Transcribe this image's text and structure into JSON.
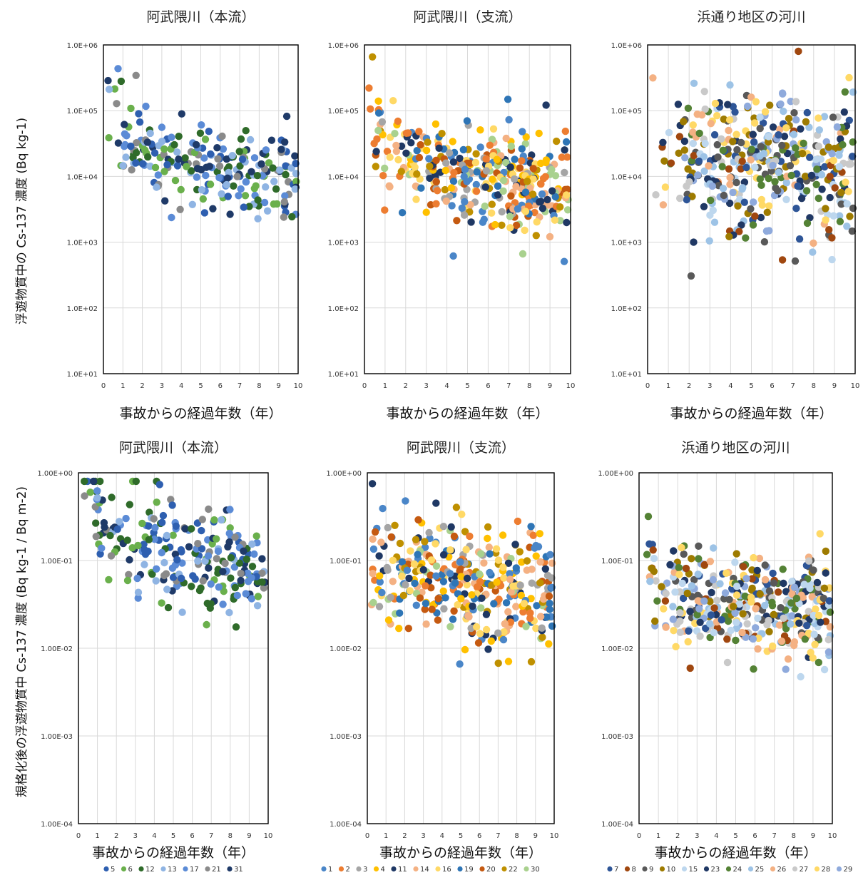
{
  "figure": {
    "ylabel_top": "浮遊物質中の Cs-137 濃度 (Bq kg-1)",
    "ylabel_bottom": "規格化後の浮遊物質中 Cs-137 濃度 (Bq kg-1 / Bq m-2)"
  },
  "legends": {
    "main": [
      {
        "label": "5",
        "color": "#2E5FB0"
      },
      {
        "label": "6",
        "color": "#6AB04C"
      },
      {
        "label": "12",
        "color": "#2F6B2A"
      },
      {
        "label": "13",
        "color": "#8FB4E3"
      },
      {
        "label": "17",
        "color": "#5B8BD6"
      },
      {
        "label": "21",
        "color": "#8A8A8A"
      },
      {
        "label": "31",
        "color": "#1F3A68"
      }
    ],
    "trib": [
      {
        "label": "1",
        "color": "#4A86C8"
      },
      {
        "label": "2",
        "color": "#ED7D31"
      },
      {
        "label": "3",
        "color": "#A5A5A5"
      },
      {
        "label": "4",
        "color": "#FFC000"
      },
      {
        "label": "11",
        "color": "#1F3864"
      },
      {
        "label": "14",
        "color": "#F4B183"
      },
      {
        "label": "16",
        "color": "#FFD966"
      },
      {
        "label": "19",
        "color": "#2E75B6"
      },
      {
        "label": "20",
        "color": "#C55A11"
      },
      {
        "label": "22",
        "color": "#BF9000"
      },
      {
        "label": "30",
        "color": "#A9D18E"
      }
    ],
    "hama": [
      {
        "label": "7",
        "color": "#2E5597"
      },
      {
        "label": "8",
        "color": "#A0470F"
      },
      {
        "label": "9",
        "color": "#595959"
      },
      {
        "label": "10",
        "color": "#9E7B00"
      },
      {
        "label": "15",
        "color": "#BDD7EE"
      },
      {
        "label": "23",
        "color": "#203864"
      },
      {
        "label": "24",
        "color": "#548235"
      },
      {
        "label": "25",
        "color": "#9DC3E6"
      },
      {
        "label": "26",
        "color": "#F4B183"
      },
      {
        "label": "27",
        "color": "#C9C9C9"
      },
      {
        "label": "28",
        "color": "#FFD966"
      },
      {
        "label": "29",
        "color": "#8FAADC"
      }
    ]
  },
  "chart_data": [
    {
      "type": "scatter",
      "id": "top-main",
      "title": "阿武隈川（本流）",
      "xlabel": "事故からの経過年数（年）",
      "xlim": [
        0,
        10
      ],
      "ylim": [
        10,
        1000000
      ],
      "log_y": true,
      "xticks": [
        "0",
        "1",
        "2",
        "3",
        "4",
        "5",
        "6",
        "7",
        "8",
        "9",
        "10"
      ],
      "yticks": [
        "1.0E+01",
        "1.0E+02",
        "1.0E+03",
        "1.0E+04",
        "1.0E+05",
        "1.0E+06"
      ],
      "legend": "main",
      "density": 240,
      "trend": {
        "a": 44000,
        "b": 0.72,
        "floor": 900
      },
      "spread": 0.32
    },
    {
      "type": "scatter",
      "id": "top-trib",
      "title": "阿武隈川（支流）",
      "xlabel": "事故からの経過年数（年）",
      "xlim": [
        0,
        10
      ],
      "ylim": [
        10,
        1000000
      ],
      "log_y": true,
      "xticks": [
        "0",
        "1",
        "2",
        "3",
        "4",
        "5",
        "6",
        "7",
        "8",
        "9",
        "10"
      ],
      "yticks": [
        "1.0E+01",
        "1.0E+02",
        "1.0E+03",
        "1.0E+04",
        "1.0E+05",
        "1.0E+06"
      ],
      "legend": "trib",
      "density": 380,
      "trend": {
        "a": 32000,
        "b": 0.7,
        "floor": 900
      },
      "spread": 0.38
    },
    {
      "type": "scatter",
      "id": "top-hama",
      "title": "浜通り地区の河川",
      "xlabel": "事故からの経過年数（年）",
      "xlim": [
        0,
        10
      ],
      "ylim": [
        10,
        1000000
      ],
      "log_y": true,
      "xticks": [
        "0",
        "1",
        "2",
        "3",
        "4",
        "5",
        "6",
        "7",
        "8",
        "9",
        "10"
      ],
      "yticks": [
        "1.0E+01",
        "1.0E+02",
        "1.0E+03",
        "1.0E+04",
        "1.0E+05",
        "1.0E+06"
      ],
      "legend": "hama",
      "density": 420,
      "trend": {
        "a": 20000,
        "b": 0.12,
        "floor": 2500
      },
      "spread": 0.55
    },
    {
      "type": "scatter",
      "id": "bot-main",
      "title": "阿武隈川（本流）",
      "xlabel": "事故からの経過年数（年）",
      "xlim": [
        0,
        10
      ],
      "ylim": [
        0.0001,
        1
      ],
      "log_y": true,
      "xticks": [
        "0",
        "1",
        "2",
        "3",
        "4",
        "5",
        "6",
        "7",
        "8",
        "9",
        "10"
      ],
      "yticks": [
        "1.00E-04",
        "1.00E-03",
        "1.00E-02",
        "1.00E-01",
        "1.00E+00"
      ],
      "legend": "main",
      "density": 240,
      "trend": {
        "a": 0.4,
        "b": 0.75,
        "floor": 0.01
      },
      "spread": 0.3
    },
    {
      "type": "scatter",
      "id": "bot-trib",
      "title": "阿武隈川（支流）",
      "xlabel": "事故からの経過年数（年）",
      "xlim": [
        0,
        10
      ],
      "ylim": [
        0.0001,
        1
      ],
      "log_y": true,
      "xticks": [
        "0",
        "1",
        "2",
        "3",
        "4",
        "5",
        "6",
        "7",
        "8",
        "9",
        "10"
      ],
      "yticks": [
        "1.00E-04",
        "1.00E-03",
        "1.00E-02",
        "1.00E-01",
        "1.00E+00"
      ],
      "legend": "trib",
      "density": 380,
      "trend": {
        "a": 0.09,
        "b": 0.3,
        "floor": 0.008
      },
      "spread": 0.32
    },
    {
      "type": "scatter",
      "id": "bot-hama",
      "title": "浜通り地区の河川",
      "xlabel": "事故からの経過年数（年）",
      "xlim": [
        0,
        10
      ],
      "ylim": [
        0.0001,
        1
      ],
      "log_y": true,
      "xticks": [
        "0",
        "1",
        "2",
        "3",
        "4",
        "5",
        "6",
        "7",
        "8",
        "9",
        "10"
      ],
      "yticks": [
        "1.00E-04",
        "1.00E-03",
        "1.00E-02",
        "1.00E-01",
        "1.00E+00"
      ],
      "legend": "hama",
      "density": 400,
      "trend": {
        "a": 0.05,
        "b": 0.3,
        "floor": 0.006
      },
      "spread": 0.3
    }
  ]
}
